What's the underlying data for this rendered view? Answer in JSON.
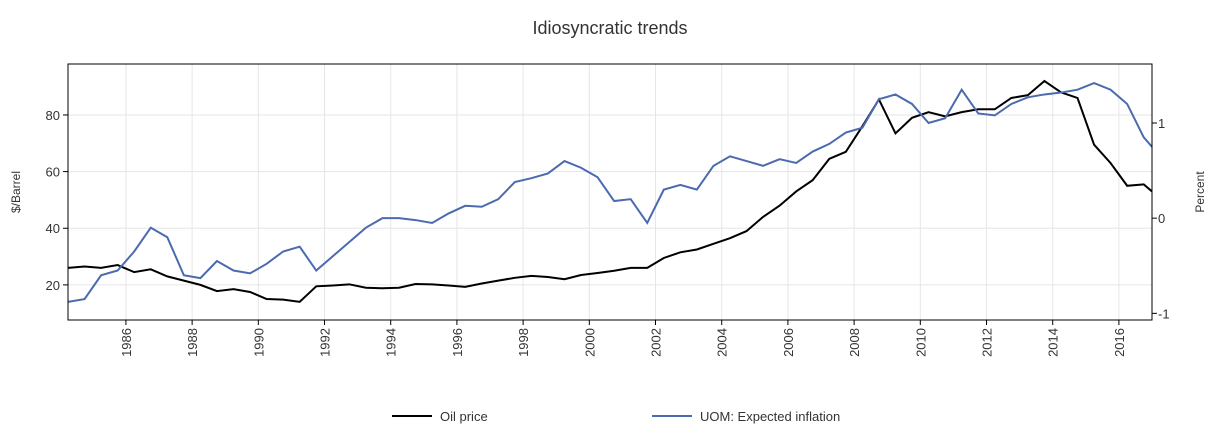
{
  "chart_data": {
    "type": "line",
    "title": "Idiosyncratic trends",
    "ylabel": "$/Barrel",
    "y2label": "Percent",
    "x": [
      1984.25,
      1984.75,
      1985.25,
      1985.75,
      1986.25,
      1986.75,
      1987.25,
      1987.75,
      1988.25,
      1988.75,
      1989.25,
      1989.75,
      1990.25,
      1990.75,
      1991.25,
      1991.75,
      1992.25,
      1992.75,
      1993.25,
      1993.75,
      1994.25,
      1994.75,
      1995.25,
      1995.75,
      1996.25,
      1996.75,
      1997.25,
      1997.75,
      1998.25,
      1998.75,
      1999.25,
      1999.75,
      2000.25,
      2000.75,
      2001.25,
      2001.75,
      2002.25,
      2002.75,
      2003.25,
      2003.75,
      2004.25,
      2004.75,
      2005.25,
      2005.75,
      2006.25,
      2006.75,
      2007.25,
      2007.75,
      2008.25,
      2008.75,
      2009.25,
      2009.75,
      2010.25,
      2010.75,
      2011.25,
      2011.75,
      2012.25,
      2012.75,
      2013.25,
      2013.75,
      2014.25,
      2014.75,
      2015.25,
      2015.75,
      2016.25,
      2016.75,
      2017.0
    ],
    "series": [
      {
        "name": "Oil price",
        "color": "#000000",
        "values": [
          26,
          26.5,
          26,
          27,
          24.5,
          25.5,
          23,
          21.5,
          20,
          17.8,
          18.5,
          17.5,
          15,
          14.8,
          14,
          19.5,
          19.8,
          20.2,
          19,
          18.8,
          19,
          20.3,
          20.2,
          19.8,
          19.3,
          20.5,
          21.5,
          22.5,
          23.2,
          22.8,
          22,
          23.5,
          24.2,
          25,
          26,
          26,
          29.5,
          31.5,
          32.5,
          34.5,
          36.5,
          39,
          44,
          48,
          53,
          57,
          64.5,
          67,
          76,
          85.5,
          73.5,
          79,
          81,
          79.5,
          81,
          82,
          82,
          86,
          87,
          92,
          88,
          86,
          69.5,
          63,
          55,
          55.5,
          53
        ]
      },
      {
        "name": "UOM: Expected inflation",
        "color": "#4b6ab0",
        "axis": "y2",
        "values": [
          -0.88,
          -0.85,
          -0.6,
          -0.55,
          -0.35,
          -0.1,
          -0.2,
          -0.6,
          -0.63,
          -0.45,
          -0.55,
          -0.58,
          -0.48,
          -0.35,
          -0.3,
          -0.55,
          -0.4,
          -0.25,
          -0.1,
          0.0,
          0.0,
          -0.02,
          -0.05,
          0.05,
          0.13,
          0.12,
          0.2,
          0.38,
          0.42,
          0.47,
          0.6,
          0.53,
          0.43,
          0.18,
          0.2,
          -0.05,
          0.3,
          0.35,
          0.3,
          0.55,
          0.65,
          0.6,
          0.55,
          0.62,
          0.58,
          0.7,
          0.78,
          0.9,
          0.95,
          1.25,
          1.3,
          1.2,
          1.0,
          1.05,
          1.35,
          1.1,
          1.08,
          1.2,
          1.27,
          1.3,
          1.32,
          1.35,
          1.42,
          1.35,
          1.2,
          0.85,
          0.75
        ]
      }
    ],
    "xlim": [
      1984.25,
      2017.0
    ],
    "xticks": [
      1986,
      1988,
      1990,
      1992,
      1994,
      1996,
      1998,
      2000,
      2002,
      2004,
      2006,
      2008,
      2010,
      2012,
      2014,
      2016
    ],
    "ylim": [
      7.6,
      98
    ],
    "yticks": [
      20,
      40,
      60,
      80
    ],
    "y2lim": [
      -1.07,
      1.62
    ],
    "y2ticks": [
      -1,
      0,
      1
    ],
    "grid": true,
    "legend": "bottom"
  }
}
